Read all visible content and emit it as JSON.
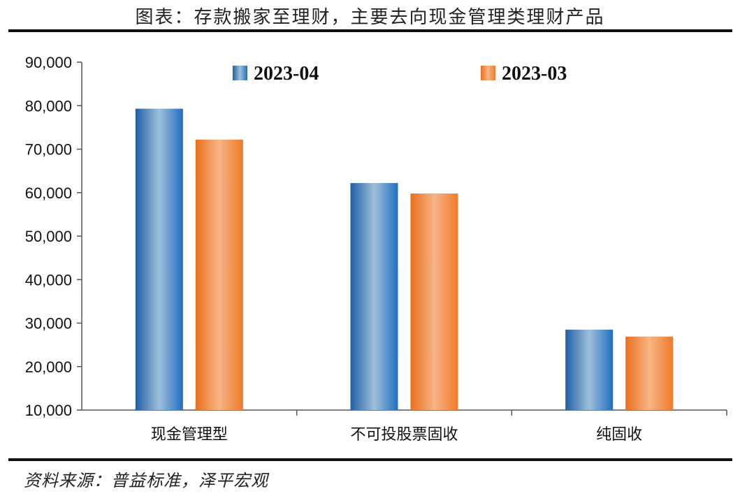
{
  "header": {
    "title": "图表：存款搬家至理财，主要去向现金管理类理财产品"
  },
  "footer": {
    "source": "资料来源：普益标准，泽平宏观"
  },
  "colors": {
    "series_1": "#2e75b6",
    "series_1_light": "#9ec3e6",
    "series_2": "#ed7d31",
    "series_2_light": "#f8cbad"
  },
  "chart_data": {
    "type": "bar",
    "title": "",
    "xlabel": "",
    "ylabel": "",
    "categories": [
      "现金管理型",
      "不可投股票固收",
      "纯固收"
    ],
    "series": [
      {
        "name": "2023-04",
        "values": [
          79300,
          62200,
          28500
        ]
      },
      {
        "name": "2023-03",
        "values": [
          72200,
          59800,
          26900
        ]
      }
    ],
    "ylim": [
      10000,
      90000
    ],
    "yticks": [
      10000,
      20000,
      30000,
      40000,
      50000,
      60000,
      70000,
      80000,
      90000
    ],
    "ytick_labels": [
      "10,000",
      "20,000",
      "30,000",
      "40,000",
      "50,000",
      "60,000",
      "70,000",
      "80,000",
      "90,000"
    ],
    "grid": false,
    "legend_position": "top"
  }
}
